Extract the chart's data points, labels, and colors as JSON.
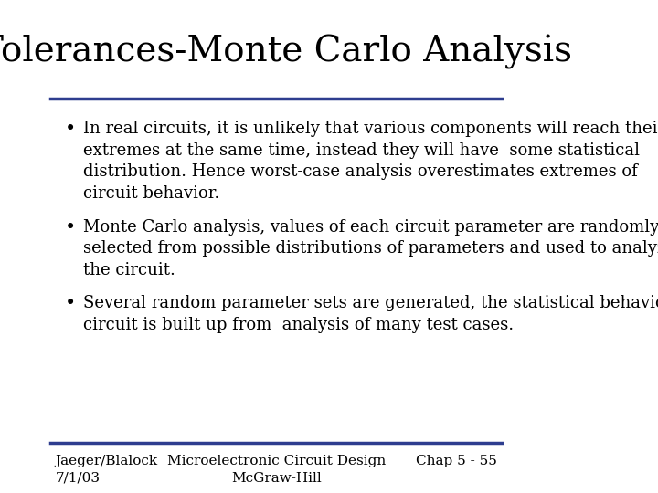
{
  "title": "Tolerances-Monte Carlo Analysis",
  "title_fontsize": 28,
  "title_font": "serif",
  "bg_color": "#ffffff",
  "line_color": "#2e3d8f",
  "text_color": "#000000",
  "footer_color": "#000000",
  "bullet_points": [
    "In real circuits, it is unlikely that various components will reach their\nextremes at the same time, instead they will have  some statistical\ndistribution. Hence worst-case analysis overestimates extremes of\ncircuit behavior.",
    "Monte Carlo analysis, values of each circuit parameter are randomly\nselected from possible distributions of parameters and used to analyze\nthe circuit.",
    "Several random parameter sets are generated, the statistical behavior of\ncircuit is built up from  analysis of many test cases."
  ],
  "bullet_fontsize": 13,
  "bullet_font": "serif",
  "footer_left": "Jaeger/Blalock\n7/1/03",
  "footer_center": "Microelectronic Circuit Design\nMcGraw-Hill",
  "footer_right": "Chap 5 - 55",
  "footer_fontsize": 11
}
